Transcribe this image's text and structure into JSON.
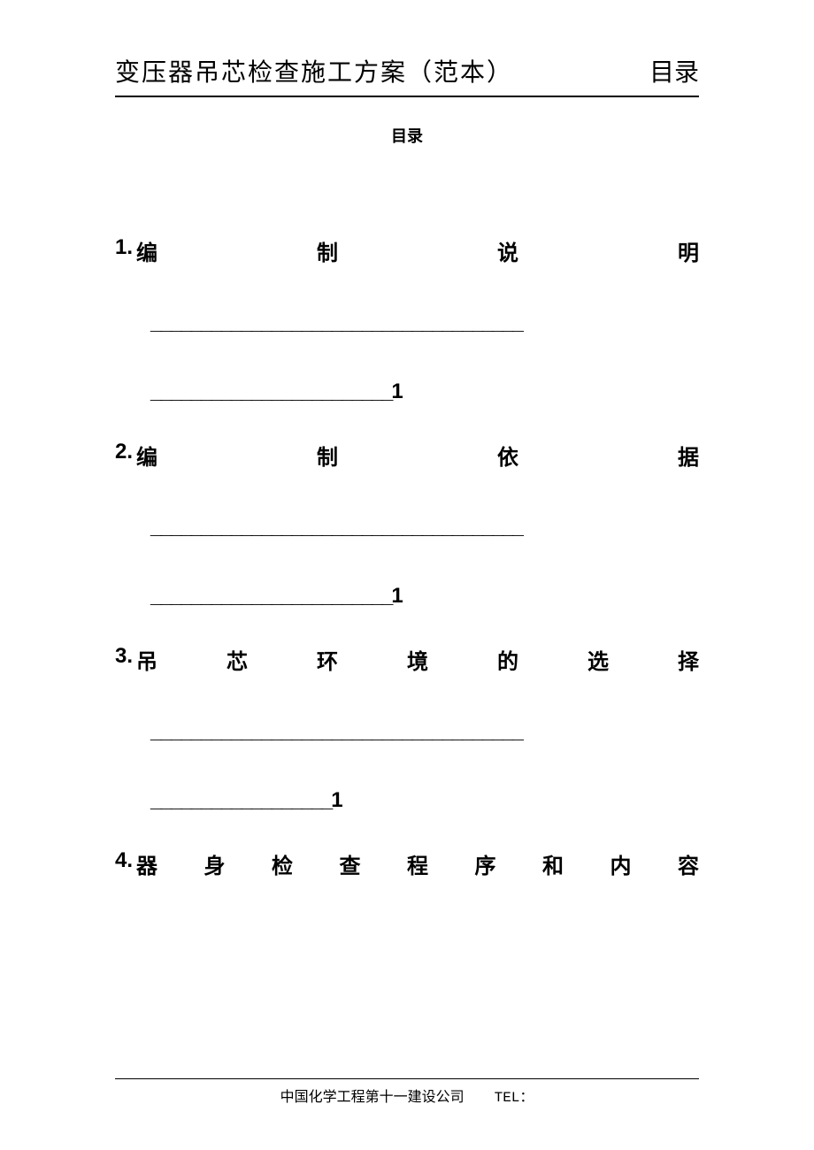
{
  "header": {
    "title": "变压器吊芯检查施工方案（范本）",
    "right": "目录"
  },
  "subtitle": "目录",
  "toc": [
    {
      "num": "1.",
      "title": "编制说明",
      "underscores1": "_____________________________________",
      "underscores2": "________________________",
      "page": "1"
    },
    {
      "num": "2.",
      "title": "编制依据",
      "underscores1": "_____________________________________",
      "underscores2": "________________________",
      "page": "1"
    },
    {
      "num": "3.",
      "title": "吊芯环境的选择",
      "underscores1": "_____________________________________",
      "underscores2": "__________________",
      "page": "1"
    },
    {
      "num": "4.",
      "title": "器身检查程序和内容",
      "underscores1": "",
      "underscores2": "",
      "page": ""
    }
  ],
  "footer": {
    "company": "中国化学工程第十一建设公司",
    "tel_label": "TEL："
  },
  "colors": {
    "text": "#000000",
    "background": "#ffffff",
    "border": "#000000"
  }
}
